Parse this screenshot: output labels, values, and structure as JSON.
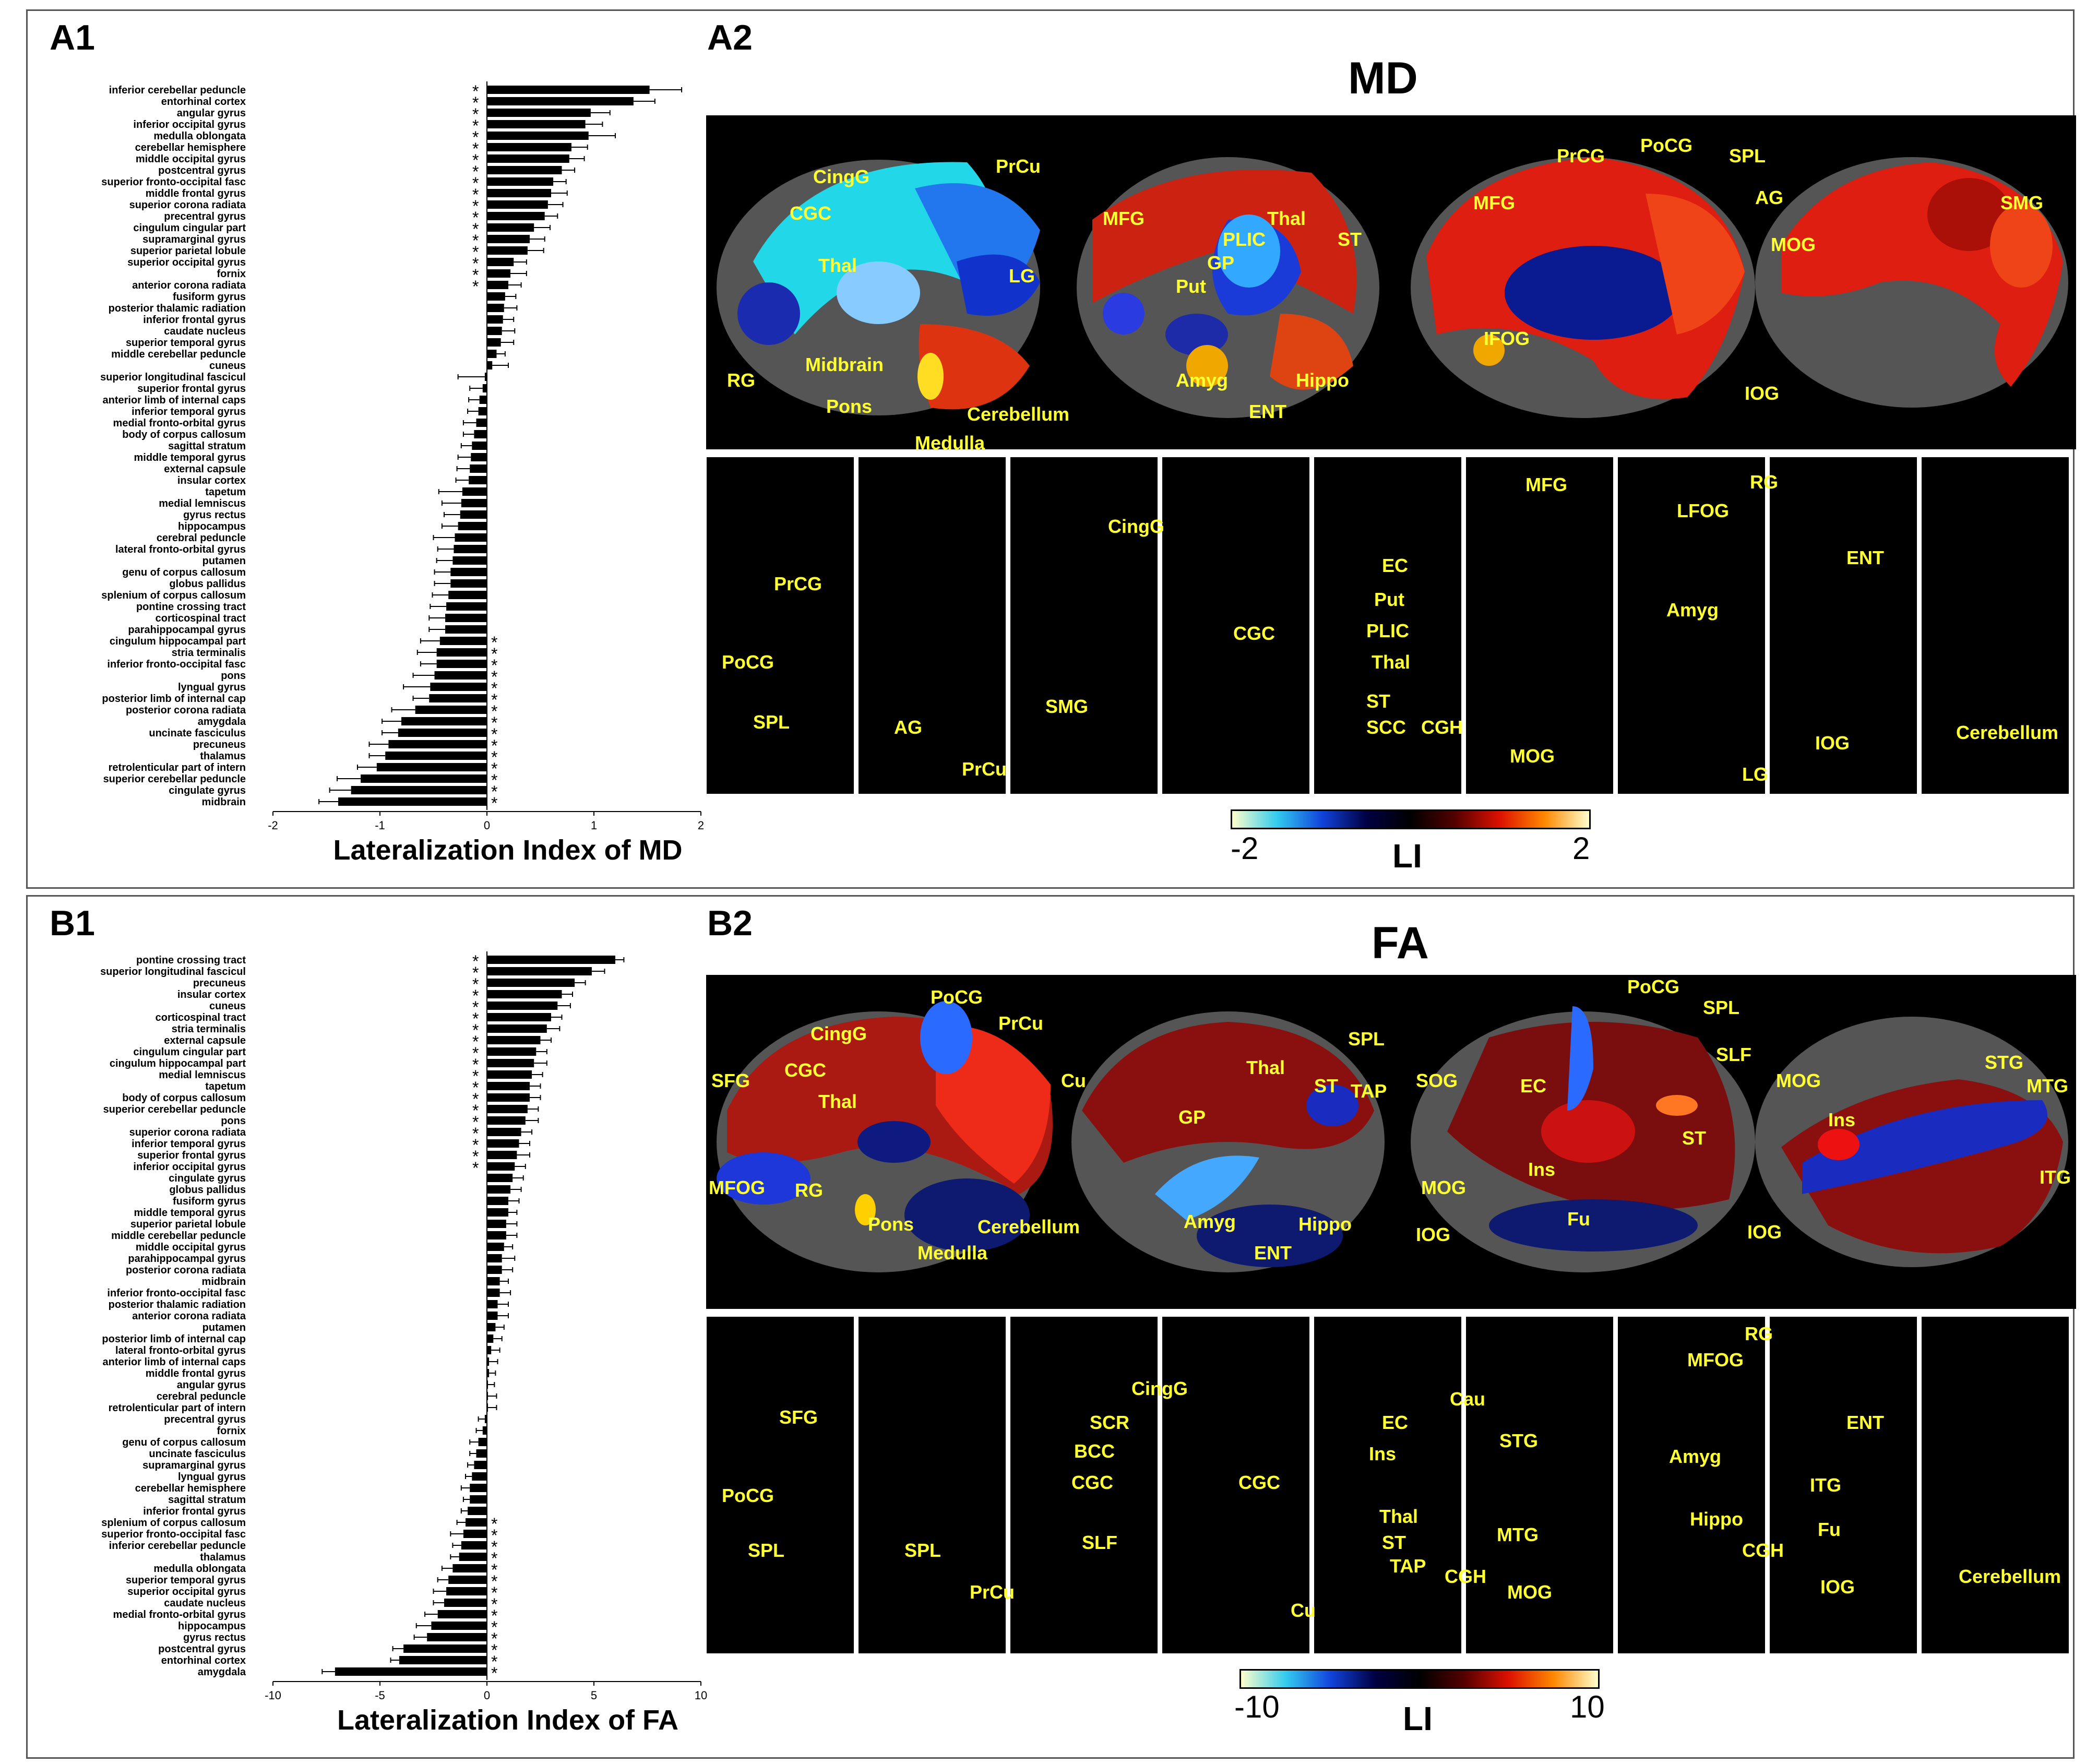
{
  "panel_a": {
    "label_bar": "A1",
    "label_brain": "A2",
    "brain_title": "MD",
    "colorbar": {
      "min": "-2",
      "max": "2",
      "title": "LI"
    },
    "region_labels_top": [
      "CingG",
      "PrCu",
      "CGC",
      "Thal",
      "LG",
      "RG",
      "Midbrain",
      "Pons",
      "Cerebellum",
      "Medulla",
      "MFG",
      "PLIC",
      "Thal",
      "GP",
      "ST",
      "Put",
      "Amyg",
      "Hippo",
      "ENT",
      "PrCG",
      "PoCG",
      "SPL",
      "MFG",
      "AG",
      "MOG",
      "IFOG",
      "IOG",
      "SMG"
    ],
    "region_labels_bottom": [
      "PrCG",
      "PoCG",
      "SPL",
      "AG",
      "PrCu",
      "CingG",
      "SMG",
      "CGC",
      "EC",
      "Put",
      "PLIC",
      "Thal",
      "ST",
      "SCC",
      "CGH",
      "MFG",
      "MOG",
      "RG",
      "LFOG",
      "Amyg",
      "LG",
      "ENT",
      "IOG",
      "Cerebellum"
    ]
  },
  "panel_b": {
    "label_bar": "B1",
    "label_brain": "B2",
    "brain_title": "FA",
    "colorbar": {
      "min": "-10",
      "max": "10",
      "title": "LI"
    },
    "region_labels_top": [
      "PoCG",
      "PrCu",
      "CingG",
      "CGC",
      "SFG",
      "Thal",
      "Cu",
      "MFOG",
      "RG",
      "Pons",
      "Cerebellum",
      "Medulla",
      "SPL",
      "Thal",
      "ST",
      "TAP",
      "SOG",
      "GP",
      "MOG",
      "Amyg",
      "Hippo",
      "ENT",
      "IOG",
      "PoCG",
      "SPL",
      "SLF",
      "EC",
      "ST",
      "Ins",
      "Fu",
      "MOG",
      "IOG",
      "STG",
      "Ins",
      "MTG",
      "ITG"
    ],
    "region_labels_bottom": [
      "SFG",
      "PoCG",
      "SPL",
      "SPL",
      "PrCu",
      "CingG",
      "SCR",
      "BCC",
      "CGC",
      "SLF",
      "CGC",
      "Cu",
      "Cau",
      "EC",
      "Ins",
      "Thal",
      "ST",
      "TAP",
      "CGH",
      "STG",
      "MTG",
      "MOG",
      "RG",
      "MFOG",
      "Amyg",
      "Hippo",
      "CGH",
      "ENT",
      "ITG",
      "Fu",
      "IOG",
      "Cerebellum"
    ]
  },
  "chart_data": [
    {
      "type": "bar",
      "orientation": "horizontal",
      "xlabel": "Lateralization Index of MD",
      "xlim": [
        -2,
        2
      ],
      "xticks": [
        "-2",
        "-1",
        "0",
        "1",
        "2"
      ],
      "categories": [
        "inferior cerebellar peduncle",
        "entorhinal cortex",
        "angular gyrus",
        "inferior occipital gyrus",
        "medulla oblongata",
        "cerebellar hemisphere",
        "middle occipital gyrus",
        "postcentral gyrus",
        "superior fronto-occipital fasc",
        "middle frontal gyrus",
        "superior corona radiata",
        "precentral gyrus",
        "cingulum cingular part",
        "supramarginal gyrus",
        "superior parietal lobule",
        "superior occipital gyrus",
        "fornix",
        "anterior corona radiata",
        "fusiform gyrus",
        "posterior thalamic radiation",
        "inferior frontal gyrus",
        "caudate nucleus",
        "superior temporal gyrus",
        "middle cerebellar peduncle",
        "cuneus",
        "superior longitudinal fascicul",
        "superior frontal gyrus",
        "anterior limb of internal caps",
        "inferior temporal gyrus",
        "medial fronto-orbital gyrus",
        "body of corpus callosum",
        "sagittal stratum",
        "middle temporal gyrus",
        "external capsule",
        "insular cortex",
        "tapetum",
        "medial lemniscus",
        "gyrus rectus",
        "hippocampus",
        "cerebral peduncle",
        "lateral fronto-orbital gyrus",
        "putamen",
        "genu of corpus callosum",
        "globus pallidus",
        "splenium of corpus callosum",
        "pontine crossing tract",
        "corticospinal tract",
        "parahippocampal gyrus",
        "cingulum hippocampal part",
        "stria terminalis",
        "inferior fronto-occipital fasc",
        "pons",
        "lyngual gyrus",
        "posterior limb of internal cap",
        "posterior corona radiata",
        "amygdala",
        "uncinate fasciculus",
        "precuneus",
        "thalamus",
        "retrolenticular part of intern",
        "superior cerebellar peduncle",
        "cingulate gyrus",
        "midbrain"
      ],
      "values": [
        1.52,
        1.37,
        0.97,
        0.92,
        0.95,
        0.79,
        0.77,
        0.7,
        0.62,
        0.6,
        0.57,
        0.54,
        0.44,
        0.4,
        0.38,
        0.25,
        0.22,
        0.2,
        0.17,
        0.16,
        0.15,
        0.14,
        0.13,
        0.09,
        0.05,
        -0.02,
        -0.04,
        -0.07,
        -0.08,
        -0.1,
        -0.12,
        -0.14,
        -0.15,
        -0.16,
        -0.17,
        -0.23,
        -0.24,
        -0.25,
        -0.27,
        -0.3,
        -0.31,
        -0.32,
        -0.34,
        -0.34,
        -0.36,
        -0.38,
        -0.39,
        -0.39,
        -0.44,
        -0.47,
        -0.47,
        -0.49,
        -0.53,
        -0.54,
        -0.67,
        -0.8,
        -0.83,
        -0.92,
        -0.95,
        -1.03,
        -1.18,
        -1.27,
        -1.39
      ],
      "errors": [
        0.3,
        0.2,
        0.18,
        0.16,
        0.25,
        0.15,
        0.14,
        0.12,
        0.12,
        0.15,
        0.14,
        0.12,
        0.15,
        0.14,
        0.15,
        0.12,
        0.15,
        0.12,
        0.1,
        0.12,
        0.1,
        0.12,
        0.12,
        0.08,
        0.15,
        0.25,
        0.12,
        0.1,
        0.1,
        0.12,
        0.1,
        0.1,
        0.12,
        0.12,
        0.12,
        0.22,
        0.18,
        0.15,
        0.15,
        0.2,
        0.15,
        0.15,
        0.15,
        0.15,
        0.15,
        0.15,
        0.15,
        0.15,
        0.18,
        0.18,
        0.15,
        0.2,
        0.25,
        0.15,
        0.22,
        0.18,
        0.15,
        0.18,
        0.15,
        0.18,
        0.22,
        0.2,
        0.18
      ],
      "significance_marker": "*",
      "significant_positive": 18,
      "significant_negative": 15
    },
    {
      "type": "bar",
      "orientation": "horizontal",
      "xlabel": "Lateralization Index of FA",
      "xlim": [
        -10,
        10
      ],
      "xticks": [
        "-10",
        "-5",
        "0",
        "5",
        "10"
      ],
      "categories": [
        "pontine crossing tract",
        "superior longitudinal fascicul",
        "precuneus",
        "insular cortex",
        "cuneus",
        "corticospinal tract",
        "stria terminalis",
        "external capsule",
        "cingulum cingular part",
        "cingulum hippocampal part",
        "medial lemniscus",
        "tapetum",
        "body of corpus callosum",
        "superior cerebellar peduncle",
        "pons",
        "superior corona radiata",
        "inferior temporal gyrus",
        "superior frontal gyrus",
        "inferior occipital gyrus",
        "cingulate gyrus",
        "globus pallidus",
        "fusiform gyrus",
        "middle temporal gyrus",
        "superior parietal lobule",
        "middle cerebellar peduncle",
        "middle occipital gyrus",
        "parahippocampal gyrus",
        "posterior corona radiata",
        "midbrain",
        "inferior fronto-occipital fasc",
        "posterior thalamic radiation",
        "anterior corona radiata",
        "putamen",
        "posterior limb of internal cap",
        "lateral fronto-orbital gyrus",
        "anterior limb of internal caps",
        "middle frontal gyrus",
        "angular gyrus",
        "cerebral peduncle",
        "retrolenticular part of intern",
        "precentral gyrus",
        "fornix",
        "genu of corpus callosum",
        "uncinate fasciculus",
        "supramarginal gyrus",
        "lyngual gyrus",
        "cerebellar hemisphere",
        "sagittal stratum",
        "inferior frontal gyrus",
        "splenium of corpus callosum",
        "superior fronto-occipital fasc",
        "inferior cerebellar peduncle",
        "thalamus",
        "medulla oblongata",
        "superior temporal gyrus",
        "superior occipital gyrus",
        "caudate nucleus",
        "medial fronto-orbital gyrus",
        "hippocampus",
        "gyrus rectus",
        "postcentral gyrus",
        "entorhinal cortex",
        "amygdala"
      ],
      "values": [
        6.0,
        4.9,
        4.1,
        3.5,
        3.3,
        3.0,
        2.8,
        2.5,
        2.3,
        2.2,
        2.1,
        2.0,
        2.0,
        1.9,
        1.8,
        1.6,
        1.5,
        1.4,
        1.3,
        1.2,
        1.1,
        1.0,
        1.0,
        0.9,
        0.9,
        0.8,
        0.7,
        0.7,
        0.6,
        0.6,
        0.5,
        0.5,
        0.4,
        0.3,
        0.2,
        0.1,
        0.1,
        0.05,
        0.05,
        0.05,
        -0.1,
        -0.2,
        -0.4,
        -0.5,
        -0.6,
        -0.7,
        -0.8,
        -0.8,
        -0.9,
        -1.0,
        -1.1,
        -1.2,
        -1.3,
        -1.6,
        -1.8,
        -1.9,
        -2.0,
        -2.3,
        -2.6,
        -2.8,
        -3.9,
        -4.1,
        -7.1
      ],
      "errors": [
        0.4,
        0.6,
        0.5,
        0.5,
        0.6,
        0.5,
        0.6,
        0.5,
        0.5,
        0.6,
        0.5,
        0.5,
        0.5,
        0.5,
        0.6,
        0.5,
        0.5,
        0.6,
        0.5,
        0.5,
        0.5,
        0.5,
        0.4,
        0.5,
        0.5,
        0.4,
        0.6,
        0.5,
        0.4,
        0.5,
        0.5,
        0.5,
        0.4,
        0.4,
        0.4,
        0.4,
        0.3,
        0.3,
        0.4,
        0.4,
        0.3,
        0.3,
        0.4,
        0.3,
        0.3,
        0.3,
        0.4,
        0.3,
        0.3,
        0.4,
        0.6,
        0.4,
        0.4,
        0.5,
        0.5,
        0.6,
        0.5,
        0.6,
        0.7,
        0.6,
        0.5,
        0.4,
        0.6
      ],
      "significance_marker": "*",
      "significant_positive": 19,
      "significant_negative": 14
    }
  ]
}
